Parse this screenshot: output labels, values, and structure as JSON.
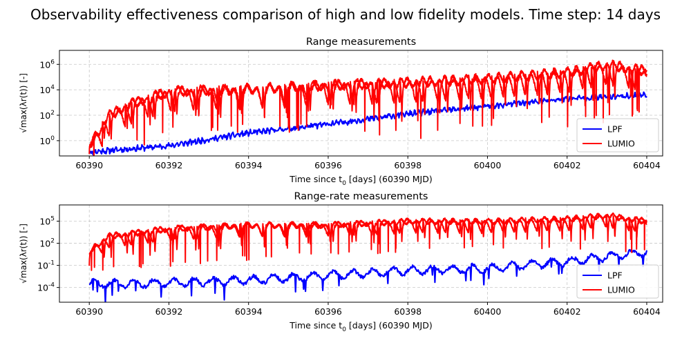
{
  "figure": {
    "suptitle": "Observability effectiveness comparison of high and low fidelity models. Time step: 14 days"
  },
  "chart_data": [
    {
      "type": "line",
      "title": "Range measurements",
      "xlabel": "Time since t0 [days] (60390 MJD)",
      "ylabel": "√max(λr(t)) [-]",
      "xlim": [
        60389.25,
        60404.4
      ],
      "ylim_log10": [
        -1.2,
        7.1
      ],
      "yscale": "log",
      "grid": true,
      "legend_position": "lower-right",
      "xticks": [
        60390,
        60392,
        60394,
        60396,
        60398,
        60400,
        60402,
        60404
      ],
      "xtick_labels": [
        "60390",
        "60392",
        "60394",
        "60396",
        "60398",
        "60400",
        "60402",
        "60404"
      ],
      "yticks_log10": [
        0,
        2,
        4,
        6
      ],
      "ytick_labels": [
        "10^0",
        "10^2",
        "10^4",
        "10^6"
      ],
      "series": [
        {
          "name": "LPF",
          "color": "#0000ff",
          "trend_log10": [
            [
              60390,
              -0.9
            ],
            [
              60392,
              -0.4
            ],
            [
              60394,
              0.6
            ],
            [
              60396,
              1.3
            ],
            [
              60398,
              2.1
            ],
            [
              60400,
              2.7
            ],
            [
              60402,
              3.3
            ],
            [
              60404,
              3.6
            ]
          ]
        },
        {
          "name": "LUMIO",
          "color": "#ff0000",
          "envelope_top_log10": [
            [
              60390,
              0.2
            ],
            [
              60390.5,
              2.5
            ],
            [
              60391,
              3.4
            ],
            [
              60392,
              4.4
            ],
            [
              60394,
              4.6
            ],
            [
              60396,
              4.9
            ],
            [
              60398,
              5.1
            ],
            [
              60400,
              5.4
            ],
            [
              60402,
              5.9
            ],
            [
              60403,
              6.5
            ],
            [
              60404,
              6.0
            ]
          ],
          "dip_bottom_log10": [
            [
              60390,
              -1.0
            ],
            [
              60392,
              1.0
            ],
            [
              60394,
              1.2
            ],
            [
              60396,
              1.6
            ],
            [
              60398,
              0.6
            ],
            [
              60400,
              1.8
            ],
            [
              60402,
              1.8
            ],
            [
              60404,
              2.6
            ]
          ]
        }
      ]
    },
    {
      "type": "line",
      "title": "Range-rate measurements",
      "xlabel": "Time since t0 [days] (60390 MJD)",
      "ylabel": "√max(λr(t)) [-]",
      "xlim": [
        60389.25,
        60404.4
      ],
      "ylim_log10": [
        -6.0,
        7.2
      ],
      "yscale": "log",
      "grid": true,
      "legend_position": "lower-right",
      "xticks": [
        60390,
        60392,
        60394,
        60396,
        60398,
        60400,
        60402,
        60404
      ],
      "xtick_labels": [
        "60390",
        "60392",
        "60394",
        "60396",
        "60398",
        "60400",
        "60402",
        "60404"
      ],
      "yticks_log10": [
        -4,
        -1,
        2,
        5
      ],
      "ytick_labels": [
        "10^-4",
        "10^-1",
        "10^2",
        "10^5"
      ],
      "series": [
        {
          "name": "LPF",
          "color": "#0000ff",
          "trend_log10": [
            [
              60390,
              -3.5
            ],
            [
              60392,
              -3.4
            ],
            [
              60394,
              -3.0
            ],
            [
              60396,
              -2.4
            ],
            [
              60398,
              -1.7
            ],
            [
              60400,
              -1.4
            ],
            [
              60402,
              -0.5
            ],
            [
              60404,
              0.8
            ]
          ]
        },
        {
          "name": "LUMIO",
          "color": "#ff0000",
          "envelope_top_log10": [
            [
              60390,
              1.5
            ],
            [
              60390.5,
              3.5
            ],
            [
              60392,
              4.5
            ],
            [
              60394,
              5.0
            ],
            [
              60396,
              5.0
            ],
            [
              60398,
              5.5
            ],
            [
              60400,
              5.5
            ],
            [
              60402,
              5.8
            ],
            [
              60403,
              6.3
            ],
            [
              60404,
              5.5
            ]
          ],
          "dip_bottom_log10": [
            [
              60390,
              -1.0
            ],
            [
              60392,
              -0.5
            ],
            [
              60394,
              0.5
            ],
            [
              60396,
              1.0
            ],
            [
              60398,
              1.5
            ],
            [
              60400,
              1.8
            ],
            [
              60402,
              1.5
            ],
            [
              60404,
              1.5
            ]
          ]
        }
      ]
    }
  ]
}
